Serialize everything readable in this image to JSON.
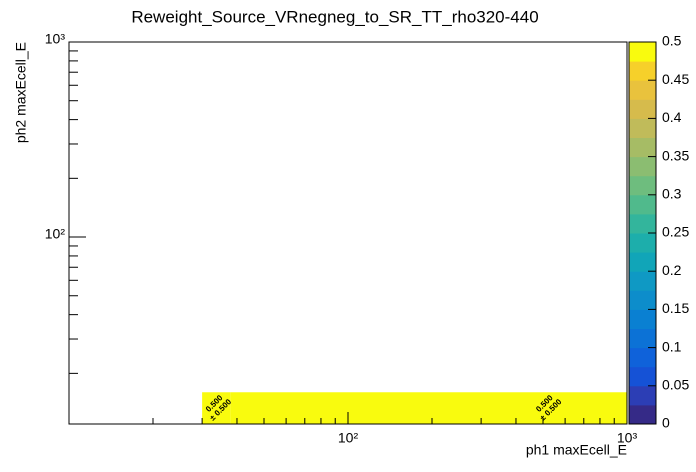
{
  "chart_data": {
    "type": "heatmap",
    "title": "Reweight_Source_VRnegneg_to_SR_TT_rho320-440",
    "x_label": "ph1 maxEcell_E",
    "y_label": "ph2 maxEcell_E",
    "xlim": [
      10,
      1000
    ],
    "ylim": [
      11,
      1000
    ],
    "log_x": true,
    "log_y": true,
    "xticks": [
      {
        "value": 100,
        "label": "10²"
      },
      {
        "value": 1000,
        "label": "10³"
      }
    ],
    "yticks": [
      {
        "value": 100,
        "label": "10²"
      },
      {
        "value": 1000,
        "label": "10³"
      }
    ],
    "x_edges": [
      30,
      38,
      1000
    ],
    "y_edges": [
      11,
      16
    ],
    "values": [
      [
        0.5,
        0.5
      ]
    ],
    "errors": [
      [
        0.5,
        0.5
      ]
    ],
    "value_labels": [
      [
        "0.500",
        "0.500"
      ]
    ],
    "error_labels": [
      [
        "± 0.500",
        "± 0.500"
      ]
    ],
    "zlim": [
      0,
      0.5
    ],
    "zticks": [
      0,
      0.05,
      0.1,
      0.15,
      0.2,
      0.25,
      0.3,
      0.35,
      0.4,
      0.45,
      0.5
    ],
    "palette": [
      "#352a87",
      "#2c3eb5",
      "#1552d6",
      "#0f62da",
      "#0c72d6",
      "#0a80d2",
      "#0d8dcb",
      "#0f99c4",
      "#11a5b8",
      "#1daeab",
      "#33b59c",
      "#50ba8c",
      "#6ebd7e",
      "#8bbd71",
      "#a6bc65",
      "#c0bb5a",
      "#d6bb4c",
      "#e9c23d",
      "#f6d02a",
      "#f9fb0e"
    ]
  }
}
